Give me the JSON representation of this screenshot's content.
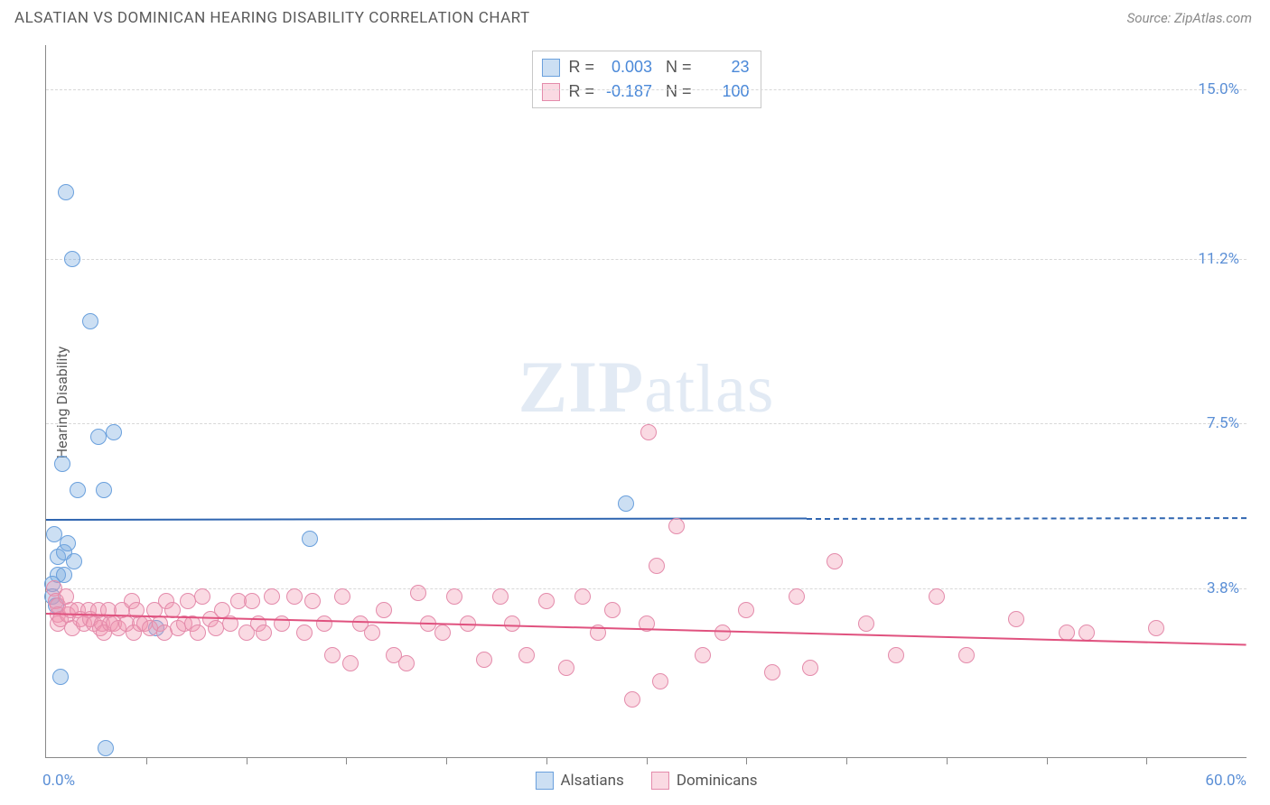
{
  "header": {
    "title": "ALSATIAN VS DOMINICAN HEARING DISABILITY CORRELATION CHART",
    "source": "Source: ZipAtlas.com"
  },
  "axes": {
    "y_label": "Hearing Disability",
    "xlim": [
      0,
      60
    ],
    "ylim": [
      0,
      16
    ],
    "x_start_label": "0.0%",
    "x_end_label": "60.0%",
    "y_ticks": [
      {
        "value": 3.8,
        "label": "3.8%"
      },
      {
        "value": 7.5,
        "label": "7.5%"
      },
      {
        "value": 11.2,
        "label": "11.2%"
      },
      {
        "value": 15.0,
        "label": "15.0%"
      }
    ],
    "x_tick_step": 5,
    "grid_color": "#d8d8d8"
  },
  "watermark": {
    "prefix": "ZIP",
    "suffix": "atlas"
  },
  "series": [
    {
      "id": "alsatians",
      "label": "Alsatians",
      "color_fill": "rgba(122,170,224,0.38)",
      "color_stroke": "#6aa0dd",
      "color_line": "#2f65b0",
      "marker_radius": 9,
      "r": "0.003",
      "n": "23",
      "trend": {
        "y_start": 5.35,
        "y_end": 5.4,
        "solid_until_x": 38
      },
      "points": [
        {
          "x": 1.0,
          "y": 12.7
        },
        {
          "x": 1.3,
          "y": 11.2
        },
        {
          "x": 2.2,
          "y": 9.8
        },
        {
          "x": 2.6,
          "y": 7.2
        },
        {
          "x": 3.4,
          "y": 7.3
        },
        {
          "x": 0.8,
          "y": 6.6
        },
        {
          "x": 1.6,
          "y": 6.0
        },
        {
          "x": 2.9,
          "y": 6.0
        },
        {
          "x": 0.4,
          "y": 5.0
        },
        {
          "x": 0.6,
          "y": 4.5
        },
        {
          "x": 0.9,
          "y": 4.6
        },
        {
          "x": 1.4,
          "y": 4.4
        },
        {
          "x": 0.6,
          "y": 4.1
        },
        {
          "x": 0.3,
          "y": 3.9
        },
        {
          "x": 0.3,
          "y": 3.6
        },
        {
          "x": 5.5,
          "y": 2.9
        },
        {
          "x": 0.9,
          "y": 4.1
        },
        {
          "x": 29.0,
          "y": 5.7
        },
        {
          "x": 13.2,
          "y": 4.9
        },
        {
          "x": 0.7,
          "y": 1.8
        },
        {
          "x": 3.0,
          "y": 0.2
        },
        {
          "x": 1.1,
          "y": 4.8
        },
        {
          "x": 0.5,
          "y": 3.4
        }
      ]
    },
    {
      "id": "dominicans",
      "label": "Dominicans",
      "color_fill": "rgba(240,150,175,0.35)",
      "color_stroke": "#e48bab",
      "color_line": "#e0527f",
      "marker_radius": 9,
      "r": "-0.187",
      "n": "100",
      "trend": {
        "y_start": 3.25,
        "y_end": 2.55,
        "solid_until_x": 60
      },
      "points": [
        {
          "x": 0.4,
          "y": 3.8
        },
        {
          "x": 0.5,
          "y": 3.5
        },
        {
          "x": 0.6,
          "y": 3.4
        },
        {
          "x": 0.6,
          "y": 3.2
        },
        {
          "x": 0.6,
          "y": 3.0
        },
        {
          "x": 0.7,
          "y": 3.1
        },
        {
          "x": 1.0,
          "y": 3.6
        },
        {
          "x": 1.1,
          "y": 3.2
        },
        {
          "x": 1.2,
          "y": 3.3
        },
        {
          "x": 1.3,
          "y": 2.9
        },
        {
          "x": 1.6,
          "y": 3.3
        },
        {
          "x": 1.7,
          "y": 3.1
        },
        {
          "x": 1.9,
          "y": 3.0
        },
        {
          "x": 2.1,
          "y": 3.3
        },
        {
          "x": 2.2,
          "y": 3.1
        },
        {
          "x": 2.4,
          "y": 3.0
        },
        {
          "x": 2.6,
          "y": 3.3
        },
        {
          "x": 2.7,
          "y": 2.9
        },
        {
          "x": 2.8,
          "y": 3.0
        },
        {
          "x": 2.9,
          "y": 2.8
        },
        {
          "x": 3.1,
          "y": 3.3
        },
        {
          "x": 3.2,
          "y": 3.0
        },
        {
          "x": 3.4,
          "y": 3.0
        },
        {
          "x": 3.6,
          "y": 2.9
        },
        {
          "x": 3.8,
          "y": 3.3
        },
        {
          "x": 4.0,
          "y": 3.0
        },
        {
          "x": 4.3,
          "y": 3.5
        },
        {
          "x": 4.4,
          "y": 2.8
        },
        {
          "x": 4.5,
          "y": 3.3
        },
        {
          "x": 4.7,
          "y": 3.0
        },
        {
          "x": 4.9,
          "y": 3.0
        },
        {
          "x": 5.2,
          "y": 2.9
        },
        {
          "x": 5.4,
          "y": 3.3
        },
        {
          "x": 5.7,
          "y": 3.0
        },
        {
          "x": 5.9,
          "y": 2.8
        },
        {
          "x": 6.0,
          "y": 3.5
        },
        {
          "x": 6.3,
          "y": 3.3
        },
        {
          "x": 6.6,
          "y": 2.9
        },
        {
          "x": 6.9,
          "y": 3.0
        },
        {
          "x": 7.1,
          "y": 3.5
        },
        {
          "x": 7.3,
          "y": 3.0
        },
        {
          "x": 7.6,
          "y": 2.8
        },
        {
          "x": 7.8,
          "y": 3.6
        },
        {
          "x": 8.2,
          "y": 3.1
        },
        {
          "x": 8.5,
          "y": 2.9
        },
        {
          "x": 8.8,
          "y": 3.3
        },
        {
          "x": 9.2,
          "y": 3.0
        },
        {
          "x": 9.6,
          "y": 3.5
        },
        {
          "x": 10.0,
          "y": 2.8
        },
        {
          "x": 10.3,
          "y": 3.5
        },
        {
          "x": 10.6,
          "y": 3.0
        },
        {
          "x": 10.9,
          "y": 2.8
        },
        {
          "x": 11.3,
          "y": 3.6
        },
        {
          "x": 11.8,
          "y": 3.0
        },
        {
          "x": 12.4,
          "y": 3.6
        },
        {
          "x": 12.9,
          "y": 2.8
        },
        {
          "x": 13.3,
          "y": 3.5
        },
        {
          "x": 13.9,
          "y": 3.0
        },
        {
          "x": 14.3,
          "y": 2.3
        },
        {
          "x": 14.8,
          "y": 3.6
        },
        {
          "x": 15.2,
          "y": 2.1
        },
        {
          "x": 15.7,
          "y": 3.0
        },
        {
          "x": 16.3,
          "y": 2.8
        },
        {
          "x": 16.9,
          "y": 3.3
        },
        {
          "x": 17.4,
          "y": 2.3
        },
        {
          "x": 18.0,
          "y": 2.1
        },
        {
          "x": 18.6,
          "y": 3.7
        },
        {
          "x": 19.1,
          "y": 3.0
        },
        {
          "x": 19.8,
          "y": 2.8
        },
        {
          "x": 20.4,
          "y": 3.6
        },
        {
          "x": 21.1,
          "y": 3.0
        },
        {
          "x": 21.9,
          "y": 2.2
        },
        {
          "x": 22.7,
          "y": 3.6
        },
        {
          "x": 23.3,
          "y": 3.0
        },
        {
          "x": 24.0,
          "y": 2.3
        },
        {
          "x": 25.0,
          "y": 3.5
        },
        {
          "x": 26.0,
          "y": 2.0
        },
        {
          "x": 26.8,
          "y": 3.6
        },
        {
          "x": 27.6,
          "y": 2.8
        },
        {
          "x": 28.3,
          "y": 3.3
        },
        {
          "x": 29.3,
          "y": 1.3
        },
        {
          "x": 30.0,
          "y": 3.0
        },
        {
          "x": 30.1,
          "y": 7.3
        },
        {
          "x": 30.5,
          "y": 4.3
        },
        {
          "x": 30.7,
          "y": 1.7
        },
        {
          "x": 31.5,
          "y": 5.2
        },
        {
          "x": 32.8,
          "y": 2.3
        },
        {
          "x": 33.8,
          "y": 2.8
        },
        {
          "x": 35.0,
          "y": 3.3
        },
        {
          "x": 36.3,
          "y": 1.9
        },
        {
          "x": 37.5,
          "y": 3.6
        },
        {
          "x": 38.2,
          "y": 2.0
        },
        {
          "x": 39.4,
          "y": 4.4
        },
        {
          "x": 41.0,
          "y": 3.0
        },
        {
          "x": 42.5,
          "y": 2.3
        },
        {
          "x": 44.5,
          "y": 3.6
        },
        {
          "x": 46.0,
          "y": 2.3
        },
        {
          "x": 48.5,
          "y": 3.1
        },
        {
          "x": 51.0,
          "y": 2.8
        },
        {
          "x": 52.0,
          "y": 2.8
        },
        {
          "x": 55.5,
          "y": 2.9
        }
      ]
    }
  ],
  "styling": {
    "background_color": "#ffffff",
    "axis_color": "#888888",
    "tick_label_color": "#5b8fd6",
    "title_color": "#5a5a5a"
  }
}
